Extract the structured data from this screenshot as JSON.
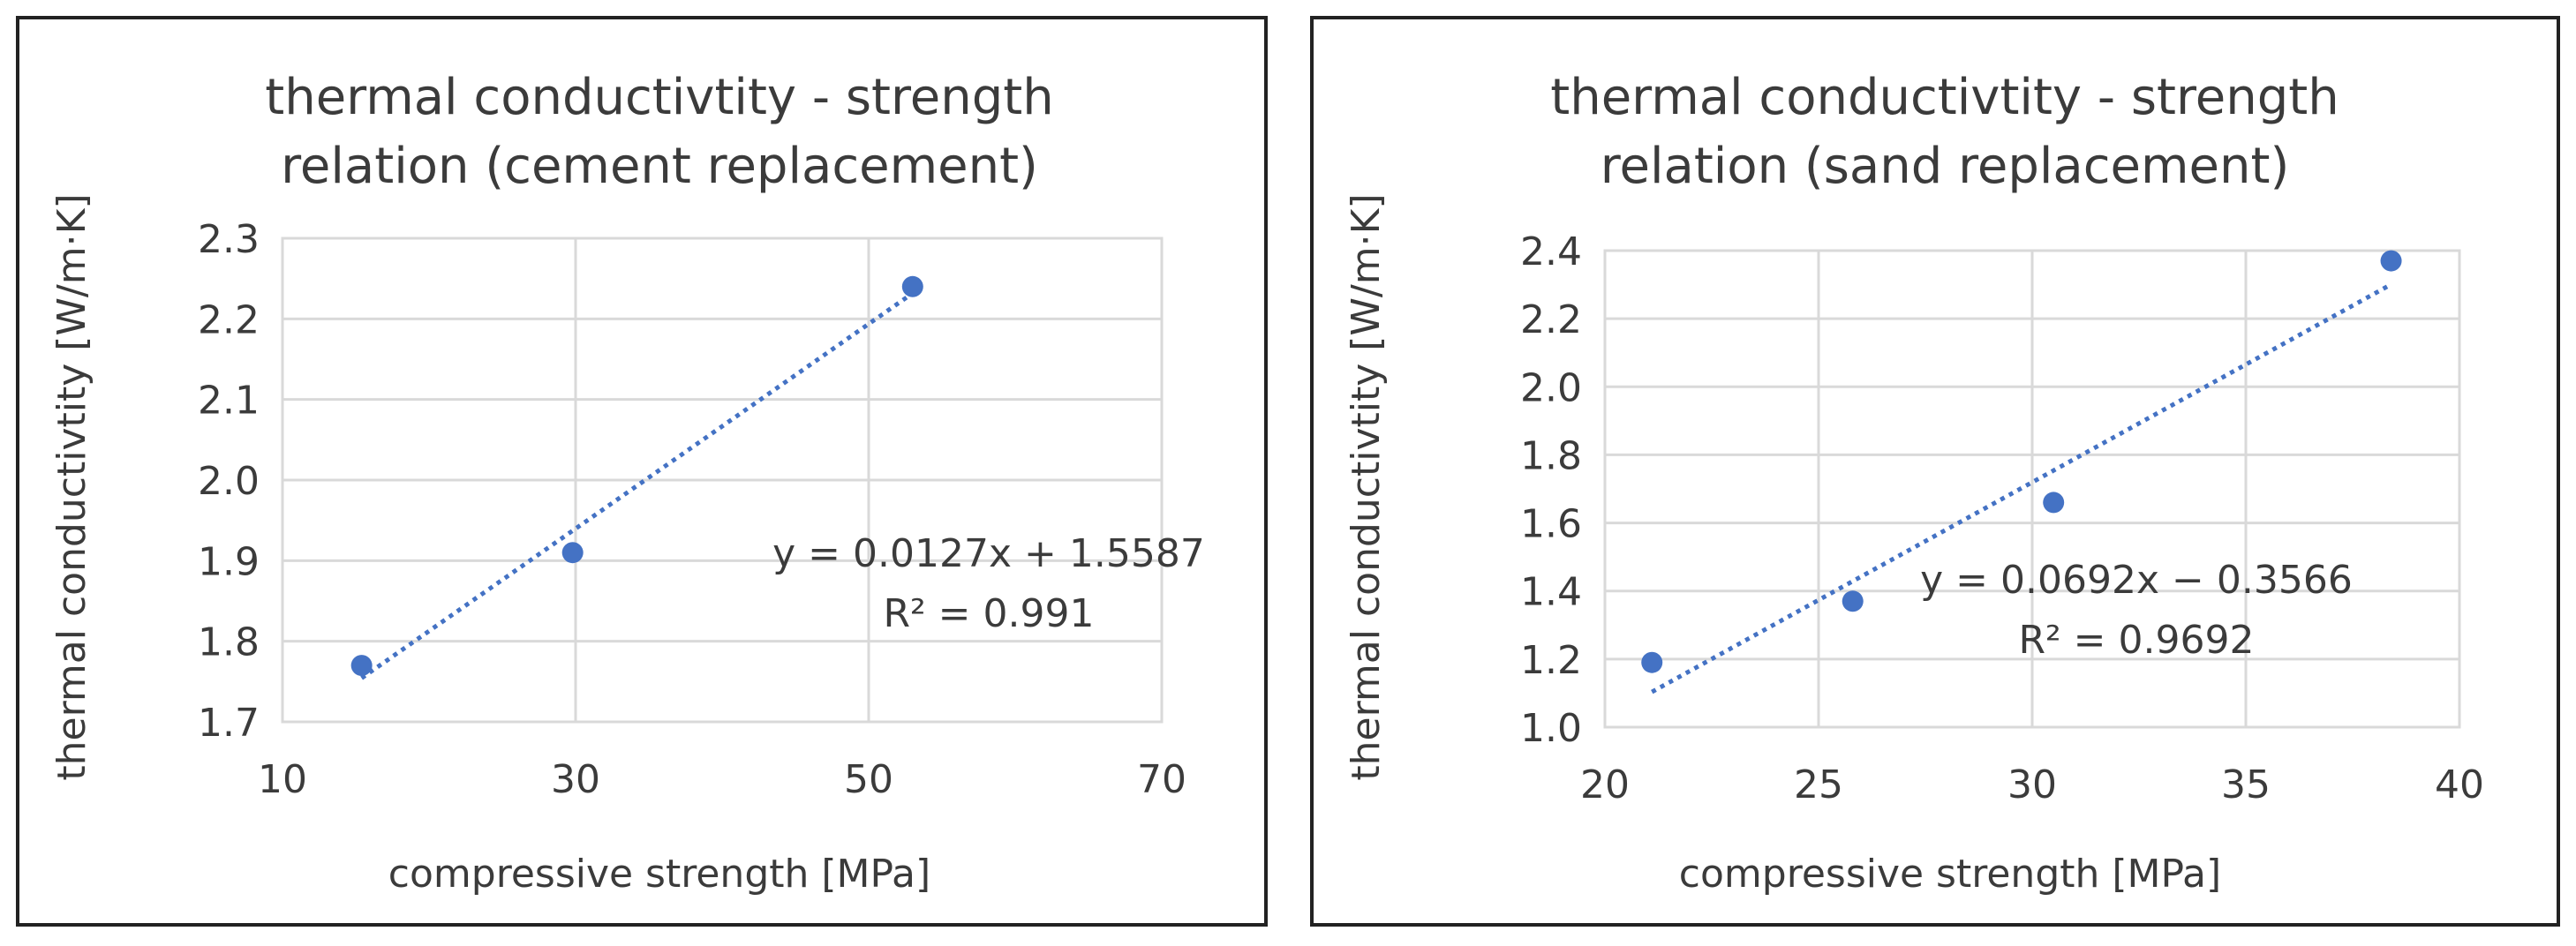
{
  "chart_data": [
    {
      "type": "scatter",
      "title_lines": [
        "thermal conductivtity - strength",
        "relation (cement replacement)"
      ],
      "xlabel": "compressive strength [MPa]",
      "ylabel": "thermal conductivtity [W/m·K]",
      "xlim": [
        10,
        70
      ],
      "ylim": [
        1.7,
        2.3
      ],
      "xticks": [
        10,
        30,
        50,
        70
      ],
      "xtick_labels": [
        "10",
        "30",
        "50",
        "70"
      ],
      "yticks": [
        1.7,
        1.8,
        1.9,
        2.0,
        2.1,
        2.2,
        2.3
      ],
      "ytick_labels": [
        "1.7",
        "1.8",
        "1.9",
        "2.0",
        "2.1",
        "2.2",
        "2.3"
      ],
      "x": [
        15.4,
        29.8,
        53.0
      ],
      "y": [
        1.77,
        1.91,
        2.24
      ],
      "trendline": {
        "slope": 0.0127,
        "intercept": 1.5587,
        "x_range": [
          15.4,
          53.0
        ]
      },
      "equation": "y = 0.0127x + 1.5587",
      "r2": "R² = 0.991",
      "marker_color": "#4472c4",
      "grid": true
    },
    {
      "type": "scatter",
      "title_lines": [
        "thermal conductivtity - strength",
        "relation (sand replacement)"
      ],
      "xlabel": "compressive strength [MPa]",
      "ylabel": "thermal conductivtity [W/m·K]",
      "xlim": [
        20,
        40
      ],
      "ylim": [
        1.0,
        2.4
      ],
      "xticks": [
        20,
        25,
        30,
        35,
        40
      ],
      "xtick_labels": [
        "20",
        "25",
        "30",
        "35",
        "40"
      ],
      "yticks": [
        1.0,
        1.2,
        1.4,
        1.6,
        1.8,
        2.0,
        2.2,
        2.4
      ],
      "ytick_labels": [
        "1.0",
        "1.2",
        "1.4",
        "1.6",
        "1.8",
        "2.0",
        "2.2",
        "2.4"
      ],
      "x": [
        21.1,
        25.8,
        30.5,
        38.4
      ],
      "y": [
        1.19,
        1.37,
        1.66,
        2.37
      ],
      "trendline": {
        "slope": 0.0692,
        "intercept": -0.3566,
        "x_range": [
          21.1,
          38.4
        ]
      },
      "equation": "y = 0.0692x − 0.3566",
      "r2": "R² = 0.9692",
      "marker_color": "#4472c4",
      "grid": true
    }
  ]
}
